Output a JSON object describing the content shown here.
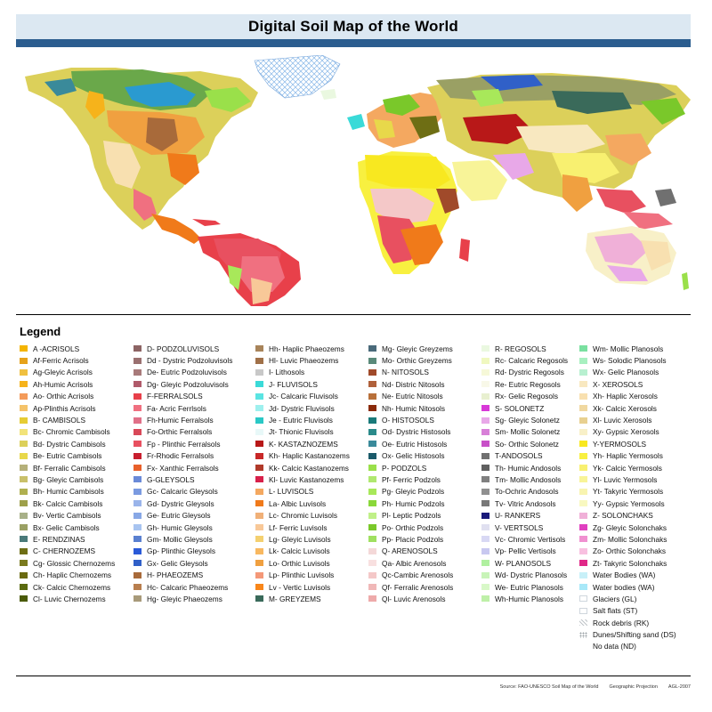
{
  "title": "Digital Soil Map of the World",
  "legend_title": "Legend",
  "colors": {
    "ocean": "#ffffff",
    "title_band": "#dce8f2",
    "title_rule": "#2b5d8f",
    "glacier": "#ffffff",
    "water": "#1f5fd6"
  },
  "legend_columns": [
    [
      {
        "label": "A -ACRISOLS",
        "color": "#f4b400"
      },
      {
        "label": "Af-Ferric Acrisols",
        "color": "#e6a21a"
      },
      {
        "label": "Ag-Gleyic Acrisols",
        "color": "#f0c040"
      },
      {
        "label": "Ah-Humic Acrisols",
        "color": "#f6b31b"
      },
      {
        "label": "Ao- Orthic Acrisols",
        "color": "#f49b5a"
      },
      {
        "label": "Ap-Plinthis Acrisols",
        "color": "#f5c36a"
      },
      {
        "label": "B- CAMBISOLS",
        "color": "#e6cc33"
      },
      {
        "label": "Bc- Chromic Cambisols",
        "color": "#f2e37a"
      },
      {
        "label": "Bd- Dystric Cambisols",
        "color": "#dcd05a"
      },
      {
        "label": "Be- Eutric Cambisols",
        "color": "#e8d84a"
      },
      {
        "label": "Bf- Ferralic Cambisols",
        "color": "#b5b07a"
      },
      {
        "label": "Bg- Gleyic Cambisols",
        "color": "#c9c06a"
      },
      {
        "label": "Bh- Humic Cambisols",
        "color": "#b0b050"
      },
      {
        "label": "Bk- Calcic Cambisols",
        "color": "#9ea04a"
      },
      {
        "label": "Bv- Vertic Cambisols",
        "color": "#a8b088"
      },
      {
        "label": "Bx- Gelic Cambisols",
        "color": "#9aa064"
      },
      {
        "label": "E- RENDZINAS",
        "color": "#4a7a7a"
      },
      {
        "label": "C- CHERNOZEMS",
        "color": "#6e6e14"
      },
      {
        "label": "Cg- Glossic Chernozems",
        "color": "#7a7a1e"
      },
      {
        "label": "Ch- Haplic Chernozems",
        "color": "#6a6a10"
      },
      {
        "label": "Ck- Calcic Chernozems",
        "color": "#5a6a10"
      },
      {
        "label": "Cl- Luvic Chernozems",
        "color": "#4a5a08"
      }
    ],
    [
      {
        "label": "D- PODZOLUVISOLS",
        "color": "#8c6464"
      },
      {
        "label": "Dd - Dystric Podzoluvisols",
        "color": "#9a7070"
      },
      {
        "label": "De- Eutric Podzoluvisols",
        "color": "#a87a7a"
      },
      {
        "label": "Dg- Gleyic Podzoluvisols",
        "color": "#b05a6a"
      },
      {
        "label": "F-FERRALSOLS",
        "color": "#e8404a"
      },
      {
        "label": "Fa- Acric Ferrlsols",
        "color": "#f07080"
      },
      {
        "label": "Fh-Humic Ferralsols",
        "color": "#e07088"
      },
      {
        "label": "Fo-Orthic Ferralsols",
        "color": "#d84858"
      },
      {
        "label": "Fp - Plinthic Ferralsols",
        "color": "#e85060"
      },
      {
        "label": "Fr-Rhodic Ferralsols",
        "color": "#c81e2e"
      },
      {
        "label": "Fx- Xanthic Ferralsols",
        "color": "#e8602a"
      },
      {
        "label": "G-GLEYSOLS",
        "color": "#6a8ad8"
      },
      {
        "label": "Gc- Calcaric Gleysols",
        "color": "#7a9ae0"
      },
      {
        "label": "Gd- Dystric Gleysols",
        "color": "#9ab4ea"
      },
      {
        "label": "Ge- Eutric Gleysols",
        "color": "#88a8e6"
      },
      {
        "label": "Gh- Humic Gleysols",
        "color": "#a8c4f0"
      },
      {
        "label": "Gm- Mollic Gleysols",
        "color": "#5a80d0"
      },
      {
        "label": "Gp- Plinthic Gleysols",
        "color": "#2a5ad8"
      },
      {
        "label": "Gx- Gelic Gleysols",
        "color": "#3060c8"
      },
      {
        "label": "H- PHAEOZEMS",
        "color": "#a86a3a"
      },
      {
        "label": "Hc- Calcaric Phaeozems",
        "color": "#b87e4e"
      },
      {
        "label": "Hg- Gleyic Phaeozems",
        "color": "#a89a7a"
      }
    ],
    [
      {
        "label": "Hh- Haplic Phaeozems",
        "color": "#a8845a"
      },
      {
        "label": "Hl- Luvic Phaeozems",
        "color": "#a07048"
      },
      {
        "label": "I- Lithosols",
        "color": "#c8c8c8"
      },
      {
        "label": "J- FLUVISOLS",
        "color": "#3adad8"
      },
      {
        "label": "Jc- Calcaric Fluvisols",
        "color": "#5ae4e2"
      },
      {
        "label": "Jd- Dystric Fluvisols",
        "color": "#9ef0ee"
      },
      {
        "label": "Je - Eutric Fluvisols",
        "color": "#2ac8c6"
      },
      {
        "label": "Jt- Thionic Fluvisols",
        "color": "#e8f8f8"
      },
      {
        "label": "K- KASTAZNOZEMS",
        "color": "#b81818"
      },
      {
        "label": "Kh- Haplic Kastanozems",
        "color": "#c82828"
      },
      {
        "label": "Kk- Calcic Kastanozems",
        "color": "#b03a2a"
      },
      {
        "label": "Kl- Luvic Kastanozems",
        "color": "#d8204a"
      },
      {
        "label": "L- LUVISOLS",
        "color": "#f4a860"
      },
      {
        "label": "La- Albic Luvisols",
        "color": "#f07a1a"
      },
      {
        "label": "Lc- Chromic Luvisols",
        "color": "#f0b078"
      },
      {
        "label": "Lf- Ferric Luvisols",
        "color": "#f8c898"
      },
      {
        "label": "Lg- Gleyic Luvisols",
        "color": "#f4d070"
      },
      {
        "label": "Lk- Calcic Luvisols",
        "color": "#f8b860"
      },
      {
        "label": "Lo- Orthic Luvisols",
        "color": "#f0a040"
      },
      {
        "label": "Lp- Plinthic Luvisols",
        "color": "#f49878"
      },
      {
        "label": "Lv - Vertic Luvisols",
        "color": "#f8861a"
      },
      {
        "label": "M- GREYZEMS",
        "color": "#3a6a5a"
      }
    ],
    [
      {
        "label": "Mg- Gleyic Greyzems",
        "color": "#4a6a7a"
      },
      {
        "label": "Mo- Orthic Greyzems",
        "color": "#5a8a7a"
      },
      {
        "label": "N- NITOSOLS",
        "color": "#a04a2a"
      },
      {
        "label": "Nd- Distric Nitosols",
        "color": "#b0603a"
      },
      {
        "label": "Ne- Eutric Nitosols",
        "color": "#b8703a"
      },
      {
        "label": "Nh- Humic Nitosols",
        "color": "#8a2a0a"
      },
      {
        "label": "O- HISTOSOLS",
        "color": "#1a7a7a"
      },
      {
        "label": "Od- Dystric Histosols",
        "color": "#2a8a8a"
      },
      {
        "label": "Oe- Eutric Histosols",
        "color": "#3a8a9a"
      },
      {
        "label": "Ox- Gelic Histosols",
        "color": "#1a5a6a"
      },
      {
        "label": "P- PODZOLS",
        "color": "#9ae04a"
      },
      {
        "label": "Pf- Ferric Podzols",
        "color": "#b0e870"
      },
      {
        "label": "Pg- Gleyic Podzols",
        "color": "#a8e85a"
      },
      {
        "label": "Ph- Humic Podzols",
        "color": "#8ad83a"
      },
      {
        "label": "Pl- Leptic Podzols",
        "color": "#c0f088"
      },
      {
        "label": "Po- Orthic Podzols",
        "color": "#7ac82a"
      },
      {
        "label": "Pp- Placic Podzols",
        "color": "#a0e060"
      },
      {
        "label": "Q- ARENOSOLS",
        "color": "#f4d8d8"
      },
      {
        "label": "Qa- Albic Arenosols",
        "color": "#f8e0e0"
      },
      {
        "label": "Qc-Cambic Arenosols",
        "color": "#f4c8c8"
      },
      {
        "label": "Qf- Ferralic Arenosols",
        "color": "#f0b8b8"
      },
      {
        "label": "Ql- Luvic Arenosols",
        "color": "#eeaaaa"
      }
    ],
    [
      {
        "label": "R- REGOSOLS",
        "color": "#eaf8e0"
      },
      {
        "label": "Rc- Calcaric Regosols",
        "color": "#f0f8c0"
      },
      {
        "label": "Rd- Dystric Regosols",
        "color": "#f6f8d8"
      },
      {
        "label": "Re- Eutric Regosols",
        "color": "#f8f8e8"
      },
      {
        "label": "Rx- Gelic Regosols",
        "color": "#e8f0d0"
      },
      {
        "label": "S- SOLONETZ",
        "color": "#d838d8"
      },
      {
        "label": "Sg- Gleyic Solonetz",
        "color": "#e8a8e8"
      },
      {
        "label": "Sm- Mollic Solonetz",
        "color": "#d880d8"
      },
      {
        "label": "So- Orthic Solonetz",
        "color": "#c850c8"
      },
      {
        "label": "T-ANDOSOLS",
        "color": "#707070"
      },
      {
        "label": "Th- Humic Andosols",
        "color": "#606060"
      },
      {
        "label": "Tm- Mollic Andosols",
        "color": "#808080"
      },
      {
        "label": "To-Ochric Andosols",
        "color": "#909090"
      },
      {
        "label": "Tv- Vitric Andosols",
        "color": "#787878"
      },
      {
        "label": "U- RANKERS",
        "color": "#1a1a7a"
      },
      {
        "label": "V- VERTSOLS",
        "color": "#e0e0f0"
      },
      {
        "label": "Vc- Chromic Vertisols",
        "color": "#d8d8f4"
      },
      {
        "label": "Vp- Pellic Vertisols",
        "color": "#c8c8f0"
      },
      {
        "label": "W- PLANOSOLS",
        "color": "#b0f0a0"
      },
      {
        "label": "Wd- Dystric Planosols",
        "color": "#c8f4b8"
      },
      {
        "label": "We- Eutric Planosols",
        "color": "#d8f8c8"
      },
      {
        "label": "Wh-Humic Planosols",
        "color": "#bef0a8"
      }
    ],
    [
      {
        "label": "Wm- Mollic Planosols",
        "color": "#7ae0a0"
      },
      {
        "label": "Ws- Solodic Planosols",
        "color": "#a8f0c0"
      },
      {
        "label": "Wx- Gelic Planosols",
        "color": "#b8f0d0"
      },
      {
        "label": "X- XEROSOLS",
        "color": "#f8e8c0"
      },
      {
        "label": "Xh- Haplic Xerosols",
        "color": "#f8e0b0"
      },
      {
        "label": "Xk- Calcic Xerosols",
        "color": "#f0d8a0"
      },
      {
        "label": "Xl- Luvic Xerosols",
        "color": "#e8d090"
      },
      {
        "label": "Xy- Gypsic Xerosols",
        "color": "#f8f0c8"
      },
      {
        "label": "Y-YERMOSOLS",
        "color": "#f8e820"
      },
      {
        "label": "Yh- Haplic Yermosols",
        "color": "#f8f040"
      },
      {
        "label": "Yk- Calcic Yermosols",
        "color": "#f8f070"
      },
      {
        "label": "Yl- Luvic Yermosols",
        "color": "#f8f498"
      },
      {
        "label": "Yt- Takyric Yermosols",
        "color": "#f8f4b0"
      },
      {
        "label": "Yy- Gypsic Yermosols",
        "color": "#f8f8c0"
      },
      {
        "label": "Z- SOLONCHAKS",
        "color": "#f0b0d8"
      },
      {
        "label": "Zg- Gleyic Solonchaks",
        "color": "#e040c0"
      },
      {
        "label": "Zm- Mollic Solonchaks",
        "color": "#f090d0"
      },
      {
        "label": "Zo- Orthic Solonchaks",
        "color": "#f8c0e0"
      },
      {
        "label": "Zt- Takyric Solonchaks",
        "color": "#e02888"
      },
      {
        "label": "Water Bodies (WA)",
        "color": "#c8f0f8"
      },
      {
        "label": "Water bodies (WA)",
        "color": "#a8e8f8"
      },
      {
        "label": "Glaciers (GL)",
        "color": "#ffffff",
        "swatch": "outline"
      },
      {
        "label": "Salt flats (ST)",
        "color": "#ffffff",
        "swatch": "outline"
      },
      {
        "label": "Rock debris (RK)",
        "color": "#ffffff",
        "swatch": "pattern"
      },
      {
        "label": "Dunes/Shifting sand (DS)",
        "color": "#ffffff",
        "swatch": "dots"
      },
      {
        "label": "No data (ND)",
        "color": "#ffffff",
        "swatch": "none"
      }
    ]
  ],
  "footer": {
    "source": "Source: FAO-UNESCO Soil Map of the World",
    "projection": "Geographic Projection",
    "credit": "AGL-2007"
  }
}
